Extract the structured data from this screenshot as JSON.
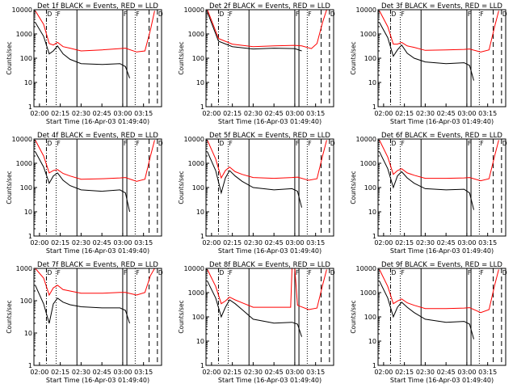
{
  "page": {
    "xlabel": "Start Time (16-Apr-03 01:49:40)",
    "ylabel": "Counts/sec",
    "legend": "BLACK = Events, RED = LLD",
    "x_tick_labels": [
      "02:00",
      "02:15",
      "02:30",
      "02:45",
      "03:00",
      "03:15"
    ],
    "y_tick_labels": [
      "1",
      "10",
      "100",
      "1000",
      "10000"
    ],
    "marker_labels": [
      "D",
      "F",
      "F",
      "F",
      "D"
    ],
    "colors": {
      "events": "#000000",
      "lld": "#ff0000",
      "axes": "#000000"
    }
  },
  "chart_data": [
    {
      "type": "line",
      "title": "Det 1f",
      "ylim": [
        1,
        10000
      ],
      "xlim": [
        "01:56",
        "03:28"
      ],
      "yscale": "log",
      "series": [
        {
          "name": "Events",
          "x": [
            "01:57",
            "02:03",
            "02:07",
            "02:10",
            "02:13",
            "02:17",
            "02:22",
            "02:30",
            "02:45",
            "02:58",
            "03:02",
            "03:05"
          ],
          "values": [
            3000,
            800,
            150,
            200,
            320,
            150,
            90,
            60,
            55,
            60,
            45,
            15
          ]
        },
        {
          "name": "LLD",
          "x": [
            "01:57",
            "02:03",
            "02:07",
            "02:10",
            "02:13",
            "02:17",
            "02:22",
            "02:30",
            "02:45",
            "02:58",
            "03:02",
            "03:10",
            "03:16",
            "03:20",
            "03:23"
          ],
          "values": [
            9000,
            2500,
            400,
            350,
            450,
            300,
            260,
            200,
            220,
            250,
            260,
            180,
            200,
            1500,
            9000
          ]
        }
      ],
      "vlines": [
        {
          "time": "02:05",
          "style": "dashdot"
        },
        {
          "time": "02:12",
          "style": "dotted"
        },
        {
          "time": "02:27",
          "style": "solid"
        },
        {
          "time": "03:00",
          "style": "solid"
        },
        {
          "time": "03:03",
          "style": "solid"
        },
        {
          "time": "03:09",
          "style": "dotted"
        },
        {
          "time": "03:19",
          "style": "dashed"
        },
        {
          "time": "03:25",
          "style": "dashed"
        }
      ]
    },
    {
      "type": "line",
      "title": "Det 2f",
      "ylim": [
        1,
        10000
      ],
      "xlim": [
        "01:56",
        "03:28"
      ],
      "yscale": "log",
      "series": [
        {
          "name": "Events",
          "x": [
            "01:57",
            "02:05",
            "02:15",
            "02:30",
            "02:45",
            "03:00",
            "03:05"
          ],
          "values": [
            8000,
            500,
            300,
            240,
            260,
            250,
            200
          ]
        },
        {
          "name": "LLD",
          "x": [
            "01:57",
            "02:05",
            "02:15",
            "02:30",
            "02:45",
            "03:00",
            "03:05",
            "03:12",
            "03:16",
            "03:20",
            "03:23"
          ],
          "values": [
            10000,
            650,
            380,
            300,
            320,
            340,
            320,
            250,
            400,
            3000,
            10000
          ]
        }
      ],
      "vlines": [
        {
          "time": "02:05",
          "style": "dashdot"
        },
        {
          "time": "02:12",
          "style": "dotted"
        },
        {
          "time": "02:27",
          "style": "solid"
        },
        {
          "time": "03:00",
          "style": "solid"
        },
        {
          "time": "03:03",
          "style": "solid"
        },
        {
          "time": "03:09",
          "style": "dotted"
        },
        {
          "time": "03:19",
          "style": "dashed"
        },
        {
          "time": "03:25",
          "style": "dashed"
        }
      ]
    },
    {
      "type": "line",
      "title": "Det 3f",
      "ylim": [
        1,
        10000
      ],
      "xlim": [
        "01:56",
        "03:28"
      ],
      "yscale": "log",
      "series": [
        {
          "name": "Events",
          "x": [
            "01:57",
            "02:03",
            "02:07",
            "02:10",
            "02:13",
            "02:17",
            "02:22",
            "02:30",
            "02:45",
            "02:58",
            "03:02",
            "03:05"
          ],
          "values": [
            3000,
            700,
            120,
            220,
            350,
            160,
            100,
            70,
            60,
            65,
            50,
            12
          ]
        },
        {
          "name": "LLD",
          "x": [
            "01:57",
            "02:03",
            "02:07",
            "02:10",
            "02:13",
            "02:17",
            "02:22",
            "02:30",
            "02:45",
            "02:58",
            "03:02",
            "03:10",
            "03:16",
            "03:20",
            "03:23"
          ],
          "values": [
            9000,
            2000,
            380,
            380,
            450,
            320,
            280,
            210,
            220,
            230,
            240,
            180,
            220,
            2000,
            9000
          ]
        }
      ],
      "vlines": [
        {
          "time": "02:05",
          "style": "dashdot"
        },
        {
          "time": "02:12",
          "style": "dotted"
        },
        {
          "time": "02:27",
          "style": "solid"
        },
        {
          "time": "03:00",
          "style": "solid"
        },
        {
          "time": "03:03",
          "style": "solid"
        },
        {
          "time": "03:09",
          "style": "dotted"
        },
        {
          "time": "03:19",
          "style": "dashed"
        },
        {
          "time": "03:25",
          "style": "dashed"
        }
      ]
    },
    {
      "type": "line",
      "title": "Det 4f",
      "ylim": [
        1,
        10000
      ],
      "xlim": [
        "01:56",
        "03:28"
      ],
      "yscale": "log",
      "series": [
        {
          "name": "Events",
          "x": [
            "01:57",
            "02:03",
            "02:07",
            "02:10",
            "02:13",
            "02:17",
            "02:22",
            "02:30",
            "02:45",
            "02:58",
            "03:02",
            "03:05"
          ],
          "values": [
            3000,
            700,
            150,
            300,
            400,
            200,
            120,
            80,
            70,
            80,
            60,
            10
          ]
        },
        {
          "name": "LLD",
          "x": [
            "01:57",
            "02:03",
            "02:07",
            "02:10",
            "02:13",
            "02:17",
            "02:22",
            "02:30",
            "02:45",
            "02:58",
            "03:02",
            "03:10",
            "03:16",
            "03:20",
            "03:23"
          ],
          "values": [
            9000,
            2000,
            400,
            500,
            550,
            380,
            300,
            220,
            230,
            250,
            260,
            180,
            220,
            2000,
            9000
          ]
        }
      ],
      "vlines": [
        {
          "time": "02:05",
          "style": "dashdot"
        },
        {
          "time": "02:12",
          "style": "dotted"
        },
        {
          "time": "02:27",
          "style": "solid"
        },
        {
          "time": "03:00",
          "style": "solid"
        },
        {
          "time": "03:03",
          "style": "solid"
        },
        {
          "time": "03:09",
          "style": "dotted"
        },
        {
          "time": "03:19",
          "style": "dashed"
        },
        {
          "time": "03:25",
          "style": "dashed"
        }
      ]
    },
    {
      "type": "line",
      "title": "Det 5f",
      "ylim": [
        1,
        10000
      ],
      "xlim": [
        "01:56",
        "03:28"
      ],
      "yscale": "log",
      "series": [
        {
          "name": "Events",
          "x": [
            "01:57",
            "02:03",
            "02:07",
            "02:10",
            "02:13",
            "02:17",
            "02:22",
            "02:30",
            "02:45",
            "02:58",
            "03:02",
            "03:05"
          ],
          "values": [
            3000,
            500,
            60,
            250,
            500,
            300,
            180,
            100,
            80,
            90,
            70,
            15
          ]
        },
        {
          "name": "LLD",
          "x": [
            "01:57",
            "02:03",
            "02:07",
            "02:10",
            "02:13",
            "02:17",
            "02:22",
            "02:30",
            "02:45",
            "02:58",
            "03:02",
            "03:10",
            "03:16",
            "03:20",
            "03:23"
          ],
          "values": [
            9000,
            1500,
            250,
            500,
            700,
            450,
            350,
            260,
            240,
            260,
            270,
            200,
            230,
            2000,
            9000
          ]
        }
      ],
      "vlines": [
        {
          "time": "02:05",
          "style": "dashdot"
        },
        {
          "time": "02:12",
          "style": "dotted"
        },
        {
          "time": "02:27",
          "style": "solid"
        },
        {
          "time": "03:00",
          "style": "solid"
        },
        {
          "time": "03:03",
          "style": "solid"
        },
        {
          "time": "03:09",
          "style": "dotted"
        },
        {
          "time": "03:19",
          "style": "dashed"
        },
        {
          "time": "03:25",
          "style": "dashed"
        }
      ]
    },
    {
      "type": "line",
      "title": "Det 6f",
      "ylim": [
        1,
        10000
      ],
      "xlim": [
        "01:56",
        "03:28"
      ],
      "yscale": "log",
      "series": [
        {
          "name": "Events",
          "x": [
            "01:57",
            "02:03",
            "02:07",
            "02:10",
            "02:13",
            "02:17",
            "02:22",
            "02:30",
            "02:45",
            "02:58",
            "03:02",
            "03:05"
          ],
          "values": [
            3000,
            600,
            100,
            300,
            450,
            250,
            150,
            90,
            80,
            85,
            60,
            12
          ]
        },
        {
          "name": "LLD",
          "x": [
            "01:57",
            "02:03",
            "02:07",
            "02:10",
            "02:13",
            "02:17",
            "02:22",
            "02:30",
            "02:45",
            "02:58",
            "03:02",
            "03:10",
            "03:16",
            "03:20",
            "03:23"
          ],
          "values": [
            9000,
            1800,
            350,
            500,
            600,
            400,
            320,
            240,
            240,
            250,
            260,
            190,
            230,
            2000,
            9000
          ]
        }
      ],
      "vlines": [
        {
          "time": "02:05",
          "style": "dashdot"
        },
        {
          "time": "02:12",
          "style": "dotted"
        },
        {
          "time": "02:27",
          "style": "solid"
        },
        {
          "time": "03:00",
          "style": "solid"
        },
        {
          "time": "03:03",
          "style": "solid"
        },
        {
          "time": "03:09",
          "style": "dotted"
        },
        {
          "time": "03:19",
          "style": "dashed"
        },
        {
          "time": "03:25",
          "style": "dashed"
        }
      ]
    },
    {
      "type": "line",
      "title": "Det 7f",
      "ylim": [
        1,
        1000
      ],
      "xlim": [
        "01:56",
        "03:28"
      ],
      "yscale": "log",
      "series": [
        {
          "name": "Events",
          "x": [
            "01:57",
            "02:03",
            "02:07",
            "02:10",
            "02:13",
            "02:17",
            "02:22",
            "02:30",
            "02:45",
            "02:58",
            "03:02",
            "03:05"
          ],
          "values": [
            300,
            80,
            20,
            80,
            120,
            90,
            75,
            65,
            60,
            60,
            50,
            20
          ]
        },
        {
          "name": "LLD",
          "x": [
            "01:57",
            "02:03",
            "02:07",
            "02:10",
            "02:13",
            "02:17",
            "02:22",
            "02:30",
            "02:45",
            "02:58",
            "03:02",
            "03:10",
            "03:16",
            "03:20",
            "03:23"
          ],
          "values": [
            1000,
            500,
            150,
            250,
            300,
            220,
            200,
            170,
            170,
            180,
            180,
            150,
            180,
            600,
            1000
          ]
        }
      ],
      "vlines": [
        {
          "time": "02:05",
          "style": "dashdot"
        },
        {
          "time": "02:12",
          "style": "dotted"
        },
        {
          "time": "02:27",
          "style": "solid"
        },
        {
          "time": "03:00",
          "style": "solid"
        },
        {
          "time": "03:03",
          "style": "solid"
        },
        {
          "time": "03:09",
          "style": "dotted"
        },
        {
          "time": "03:19",
          "style": "dashed"
        },
        {
          "time": "03:25",
          "style": "dashed"
        }
      ]
    },
    {
      "type": "line",
      "title": "Det 8f",
      "ylim": [
        1,
        10000
      ],
      "xlim": [
        "01:56",
        "03:28"
      ],
      "yscale": "log",
      "series": [
        {
          "name": "Events",
          "x": [
            "01:57",
            "02:03",
            "02:07",
            "02:10",
            "02:13",
            "02:17",
            "02:22",
            "02:30",
            "02:45",
            "02:58",
            "03:02",
            "03:05"
          ],
          "values": [
            3000,
            600,
            100,
            250,
            500,
            350,
            200,
            80,
            55,
            60,
            50,
            15
          ]
        },
        {
          "name": "LLD",
          "x": [
            "01:57",
            "02:03",
            "02:07",
            "02:10",
            "02:13",
            "02:17",
            "02:22",
            "02:30",
            "02:45",
            "02:57",
            "02:58",
            "03:00",
            "03:02",
            "03:10",
            "03:16",
            "03:20",
            "03:23"
          ],
          "values": [
            9000,
            1800,
            350,
            450,
            650,
            500,
            380,
            250,
            250,
            250,
            10000,
            10000,
            300,
            200,
            230,
            2000,
            9000
          ]
        }
      ],
      "vlines": [
        {
          "time": "02:05",
          "style": "dashdot"
        },
        {
          "time": "02:12",
          "style": "dotted"
        },
        {
          "time": "02:27",
          "style": "solid"
        },
        {
          "time": "03:00",
          "style": "solid"
        },
        {
          "time": "03:03",
          "style": "solid"
        },
        {
          "time": "03:09",
          "style": "dotted"
        },
        {
          "time": "03:19",
          "style": "dashed"
        },
        {
          "time": "03:25",
          "style": "dashed"
        }
      ]
    },
    {
      "type": "line",
      "title": "Det 9f",
      "ylim": [
        1,
        10000
      ],
      "xlim": [
        "01:56",
        "03:28"
      ],
      "yscale": "log",
      "series": [
        {
          "name": "Events",
          "x": [
            "01:57",
            "02:03",
            "02:07",
            "02:10",
            "02:13",
            "02:17",
            "02:22",
            "02:30",
            "02:45",
            "02:58",
            "03:02",
            "03:05"
          ],
          "values": [
            3000,
            600,
            100,
            250,
            400,
            250,
            150,
            80,
            60,
            65,
            50,
            12
          ]
        },
        {
          "name": "LLD",
          "x": [
            "01:57",
            "02:03",
            "02:07",
            "02:10",
            "02:13",
            "02:17",
            "02:22",
            "02:30",
            "02:45",
            "02:58",
            "03:02",
            "03:10",
            "03:16",
            "03:20",
            "03:23"
          ],
          "values": [
            9000,
            1800,
            350,
            450,
            550,
            380,
            300,
            220,
            220,
            230,
            240,
            150,
            200,
            2000,
            9000
          ]
        }
      ],
      "vlines": [
        {
          "time": "02:05",
          "style": "dashdot"
        },
        {
          "time": "02:12",
          "style": "dotted"
        },
        {
          "time": "02:27",
          "style": "solid"
        },
        {
          "time": "03:00",
          "style": "solid"
        },
        {
          "time": "03:03",
          "style": "solid"
        },
        {
          "time": "03:09",
          "style": "dotted"
        },
        {
          "time": "03:19",
          "style": "dashed"
        },
        {
          "time": "03:25",
          "style": "dashed"
        }
      ]
    }
  ]
}
